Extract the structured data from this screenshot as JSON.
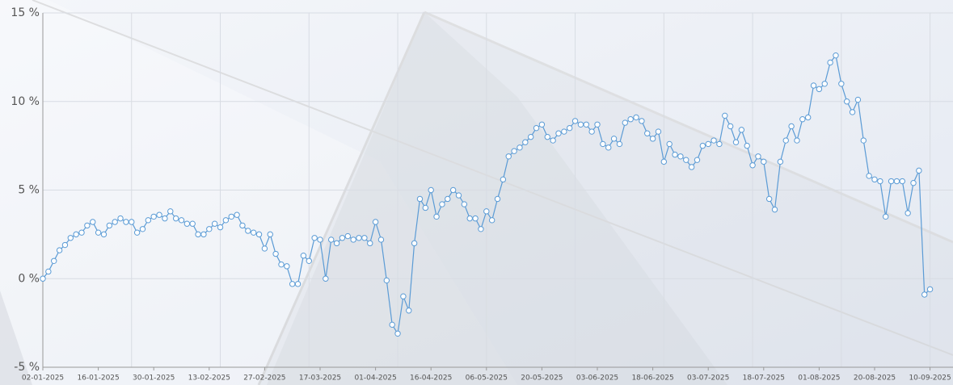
{
  "chart_data": {
    "type": "line",
    "categories": [
      "02-01-2025",
      null,
      null,
      null,
      null,
      null,
      null,
      null,
      null,
      null,
      "16-01-2025",
      null,
      null,
      null,
      null,
      null,
      null,
      null,
      null,
      null,
      "30-01-2025",
      null,
      null,
      null,
      null,
      null,
      null,
      null,
      null,
      null,
      "13-02-2025",
      null,
      null,
      null,
      null,
      null,
      null,
      null,
      null,
      null,
      "27-02-2025",
      null,
      null,
      null,
      null,
      null,
      null,
      null,
      null,
      null,
      "17-03-2025",
      null,
      null,
      null,
      null,
      null,
      null,
      null,
      null,
      null,
      "01-04-2025",
      null,
      null,
      null,
      null,
      null,
      null,
      null,
      null,
      null,
      "16-04-2025",
      null,
      null,
      null,
      null,
      null,
      null,
      null,
      null,
      null,
      "06-05-2025",
      null,
      null,
      null,
      null,
      null,
      null,
      null,
      null,
      null,
      "20-05-2025",
      null,
      null,
      null,
      null,
      null,
      null,
      null,
      null,
      null,
      "03-06-2025",
      null,
      null,
      null,
      null,
      null,
      null,
      null,
      null,
      null,
      "18-06-2025",
      null,
      null,
      null,
      null,
      null,
      null,
      null,
      null,
      null,
      "03-07-2025",
      null,
      null,
      null,
      null,
      null,
      null,
      null,
      null,
      null,
      "18-07-2025",
      null,
      null,
      null,
      null,
      null,
      null,
      null,
      null,
      null,
      "01-08-2025",
      null,
      null,
      null,
      null,
      null,
      null,
      null,
      null,
      null,
      "20-08-2025",
      null,
      null,
      null,
      null,
      null,
      null,
      null,
      null,
      null,
      "10-09-2025"
    ],
    "values": [
      0,
      0.4,
      1.0,
      1.6,
      1.9,
      2.3,
      2.5,
      2.6,
      3.0,
      3.2,
      2.6,
      2.5,
      3.0,
      3.2,
      3.4,
      3.2,
      3.2,
      2.6,
      2.8,
      3.3,
      3.5,
      3.6,
      3.4,
      3.8,
      3.4,
      3.3,
      3.1,
      3.1,
      2.5,
      2.5,
      2.8,
      3.1,
      2.9,
      3.3,
      3.5,
      3.6,
      3.0,
      2.7,
      2.6,
      2.5,
      1.7,
      2.5,
      1.4,
      0.8,
      0.7,
      -0.3,
      -0.3,
      1.3,
      1.0,
      2.3,
      2.2,
      0.0,
      2.2,
      2.0,
      2.3,
      2.4,
      2.2,
      2.3,
      2.3,
      2.0,
      3.2,
      2.2,
      -0.1,
      -2.6,
      -3.1,
      -1.0,
      -1.8,
      2.0,
      4.5,
      4.0,
      5.0,
      3.5,
      4.2,
      4.5,
      5.0,
      4.7,
      4.2,
      3.4,
      3.4,
      2.8,
      3.8,
      3.3,
      4.5,
      5.6,
      6.9,
      7.2,
      7.4,
      7.7,
      8.0,
      8.5,
      8.7,
      8.0,
      7.8,
      8.2,
      8.3,
      8.5,
      8.9,
      8.7,
      8.7,
      8.3,
      8.7,
      7.6,
      7.4,
      7.9,
      7.6,
      8.8,
      9.0,
      9.1,
      8.9,
      8.2,
      7.9,
      8.3,
      6.6,
      7.6,
      7.0,
      6.9,
      6.7,
      6.3,
      6.7,
      7.5,
      7.6,
      7.8,
      7.6,
      9.2,
      8.6,
      7.7,
      8.4,
      7.5,
      6.4,
      6.9,
      6.6,
      4.5,
      3.9,
      6.6,
      7.8,
      8.6,
      7.8,
      9.0,
      9.1,
      10.9,
      10.7,
      11.0,
      12.2,
      12.6,
      11.0,
      10.0,
      9.4,
      10.1,
      7.8,
      5.8,
      5.6,
      5.5,
      3.5,
      5.5,
      5.5,
      5.5,
      3.7,
      5.4,
      6.1,
      -0.9,
      -0.6
    ],
    "color": "#5b9bd5",
    "ylim": [
      -5,
      15
    ],
    "yticks": [
      {
        "value": -5,
        "label": "-5 %"
      },
      {
        "value": 0,
        "label": "0 %"
      },
      {
        "value": 5,
        "label": "5 %"
      },
      {
        "value": 10,
        "label": "10 %"
      },
      {
        "value": 15,
        "label": "15 %"
      }
    ],
    "grid": true
  }
}
